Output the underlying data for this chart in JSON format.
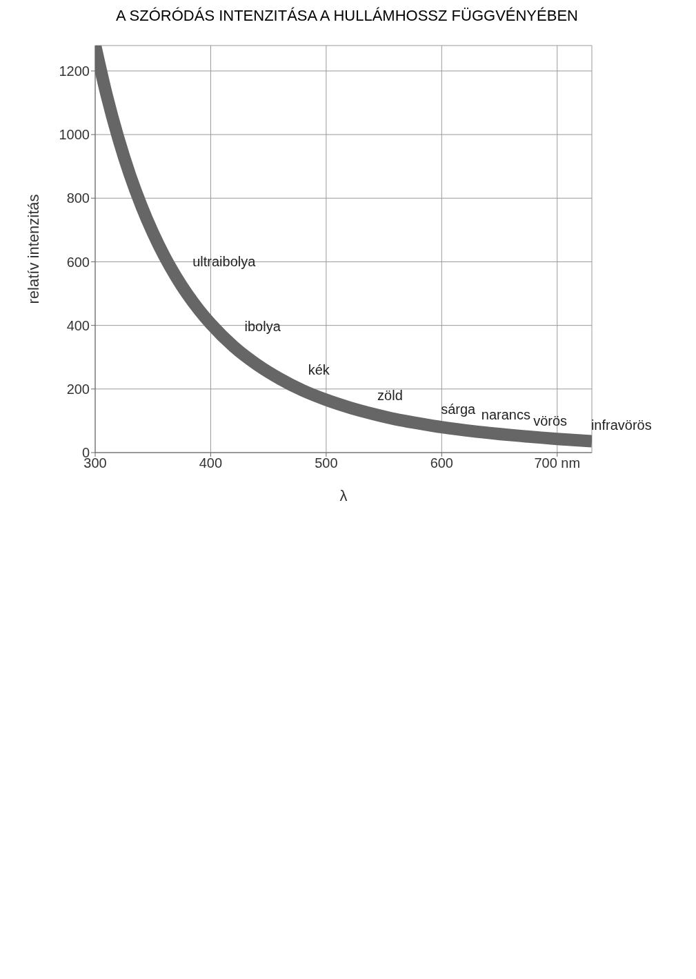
{
  "chart_data": {
    "type": "line",
    "title": "A SZÓRÓDÁS INTENZITÁSA A HULLÁMHOSSZ FÜGGVÉNYÉBEN",
    "xlabel": "λ",
    "ylabel": "relatív intenzitás",
    "x": [
      300,
      310,
      320,
      330,
      340,
      350,
      360,
      370,
      380,
      390,
      400,
      420,
      440,
      460,
      480,
      500,
      520,
      540,
      560,
      580,
      600,
      630,
      660,
      700,
      730
    ],
    "series": [
      {
        "color": "#666666",
        "values": [
          1280,
          1123,
          989,
          874,
          776,
          691,
          617,
          553,
          497,
          448,
          405,
          333,
          277,
          232,
          195,
          166,
          142,
          122,
          105,
          92,
          80,
          66,
          55,
          43,
          36
        ]
      }
    ],
    "xlim": [
      300,
      730
    ],
    "xticks": [
      300,
      400,
      500,
      600,
      {
        "value": 700,
        "label": "700 nm"
      }
    ],
    "ylim": [
      0,
      1280
    ],
    "yticks": [
      0,
      200,
      400,
      600,
      800,
      1000,
      1200
    ],
    "grid": true,
    "marker": "none",
    "line_style": "solid",
    "annotations": [
      {
        "text": "ultraibolya",
        "x": 370,
        "y": 553
      },
      {
        "text": "ibolya",
        "x": 415,
        "y": 350
      },
      {
        "text": "kék",
        "x": 470,
        "y": 213
      },
      {
        "text": "zöld",
        "x": 530,
        "y": 132
      },
      {
        "text": "sárga",
        "x": 585,
        "y": 90
      },
      {
        "text": "narancs",
        "x": 620,
        "y": 71
      },
      {
        "text": "vörös",
        "x": 665,
        "y": 53
      },
      {
        "text": "infravörös",
        "x": 715,
        "y": 40
      }
    ]
  }
}
